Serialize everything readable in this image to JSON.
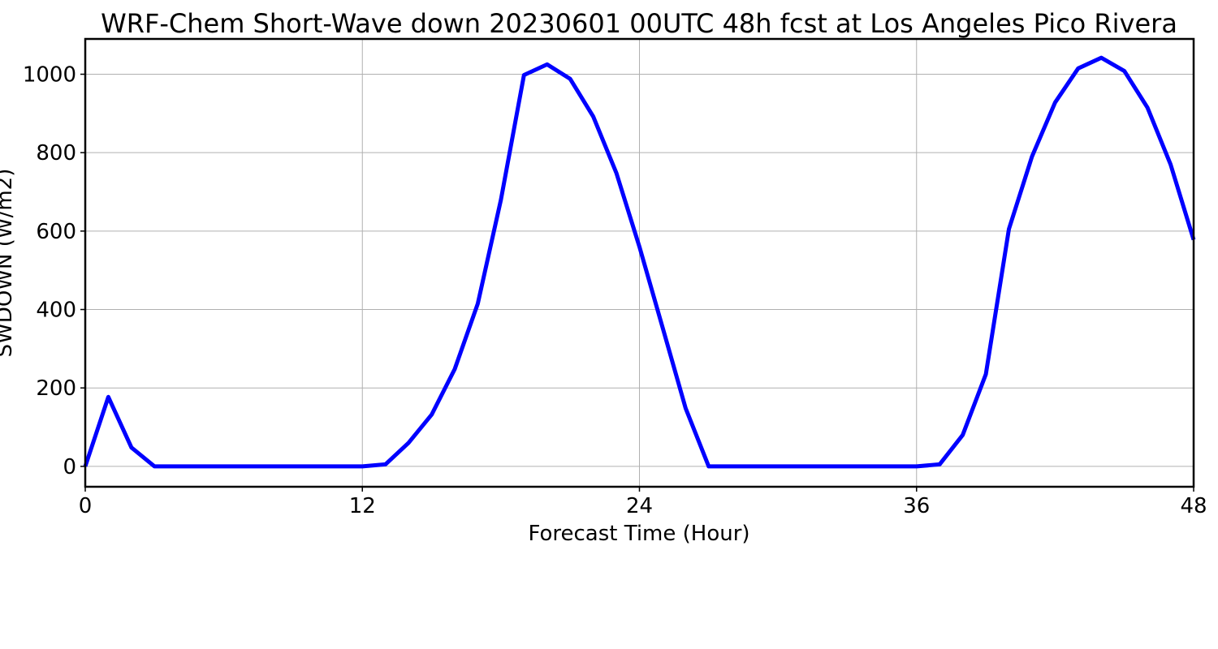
{
  "chart_data": {
    "type": "line",
    "title": "WRF-Chem Short-Wave down  20230601 00UTC 48h fcst at Los Angeles Pico Rivera",
    "xlabel": "Forecast Time (Hour)",
    "ylabel": "SWDOWN  (W/m2)",
    "xlim": [
      0,
      48
    ],
    "ylim": [
      -52,
      1090
    ],
    "xticks": [
      0,
      12,
      24,
      36,
      48
    ],
    "yticks": [
      0,
      200,
      400,
      600,
      800,
      1000
    ],
    "grid": true,
    "x": [
      0,
      1,
      2,
      3,
      4,
      5,
      6,
      7,
      8,
      9,
      10,
      11,
      12,
      13,
      14,
      15,
      16,
      17,
      18,
      19,
      20,
      21,
      22,
      23,
      24,
      25,
      26,
      27,
      28,
      29,
      30,
      31,
      32,
      33,
      34,
      35,
      36,
      37,
      38,
      39,
      40,
      41,
      42,
      43,
      44,
      45,
      46,
      47,
      48
    ],
    "series": [
      {
        "color": "#0000ff",
        "values": [
          0,
          177,
          48,
          0,
          0,
          0,
          0,
          0,
          0,
          0,
          0,
          0,
          0,
          5,
          60,
          132,
          248,
          415,
          680,
          998,
          1025,
          988,
          892,
          748,
          560,
          355,
          148,
          0,
          0,
          0,
          0,
          0,
          0,
          0,
          0,
          0,
          0,
          5,
          80,
          235,
          605,
          790,
          928,
          1015,
          1042,
          1008,
          915,
          770,
          578
        ]
      }
    ]
  }
}
